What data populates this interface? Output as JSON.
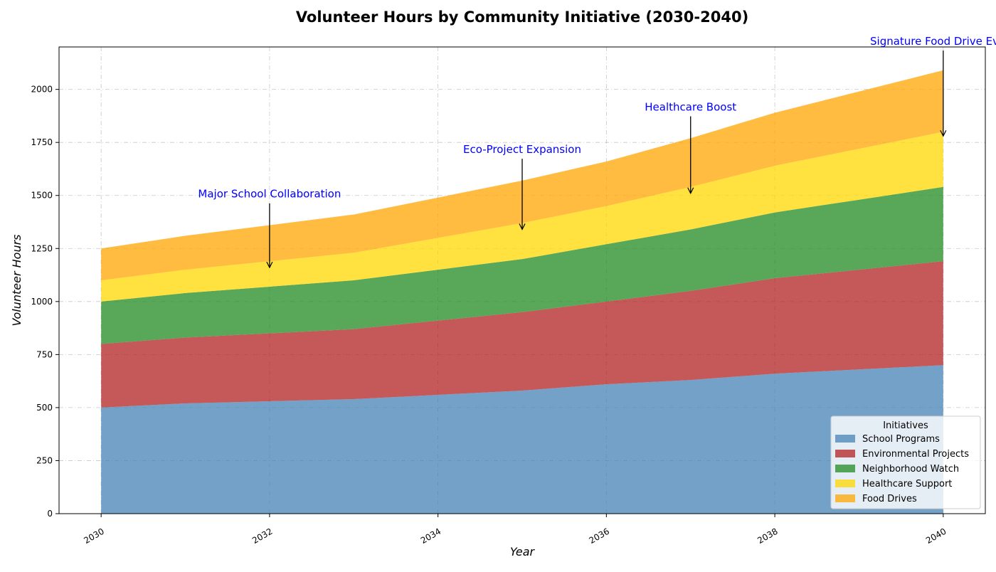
{
  "chart_data": {
    "type": "area",
    "stacked": true,
    "title": "Volunteer Hours by Community Initiative (2030-2040)",
    "xlabel": "Year",
    "ylabel": "Volunteer Hours",
    "x": [
      2030,
      2031,
      2032,
      2033,
      2034,
      2035,
      2036,
      2037,
      2038,
      2039,
      2040
    ],
    "xlim": [
      2029.5,
      2040.5
    ],
    "ylim": [
      0,
      2200
    ],
    "x_ticks": [
      "2030",
      "2032",
      "2034",
      "2036",
      "2038",
      "2040"
    ],
    "y_ticks": [
      "0",
      "250",
      "500",
      "750",
      "1000",
      "1250",
      "1500",
      "1750",
      "2000"
    ],
    "grid": true,
    "legend": {
      "title": "Initiatives",
      "position": "lower-right"
    },
    "series": [
      {
        "name": "School Programs",
        "color": "#4682B4",
        "values": [
          500,
          520,
          530,
          540,
          560,
          580,
          610,
          630,
          660,
          680,
          700
        ]
      },
      {
        "name": "Environmental Projects",
        "color": "#B22222",
        "values": [
          300,
          310,
          320,
          330,
          350,
          370,
          390,
          420,
          450,
          470,
          490
        ]
      },
      {
        "name": "Neighborhood Watch",
        "color": "#228B22",
        "values": [
          200,
          210,
          220,
          230,
          240,
          250,
          270,
          290,
          310,
          330,
          350
        ]
      },
      {
        "name": "Healthcare Support",
        "color": "#FFD700",
        "values": [
          100,
          110,
          120,
          130,
          150,
          170,
          180,
          200,
          220,
          240,
          260
        ]
      },
      {
        "name": "Food Drives",
        "color": "#FFA500",
        "values": [
          150,
          160,
          170,
          180,
          190,
          200,
          210,
          230,
          250,
          270,
          290
        ]
      }
    ],
    "annotations": [
      {
        "text": "Major School Collaboration",
        "x": 2032,
        "y": 1160,
        "text_y": 1490
      },
      {
        "text": "Eco-Project Expansion",
        "x": 2035,
        "y": 1340,
        "text_y": 1700
      },
      {
        "text": "Healthcare Boost",
        "x": 2037,
        "y": 1510,
        "text_y": 1900
      },
      {
        "text": "Signature Food Drive Event",
        "x": 2040,
        "y": 1780,
        "text_y": 2210
      }
    ]
  }
}
